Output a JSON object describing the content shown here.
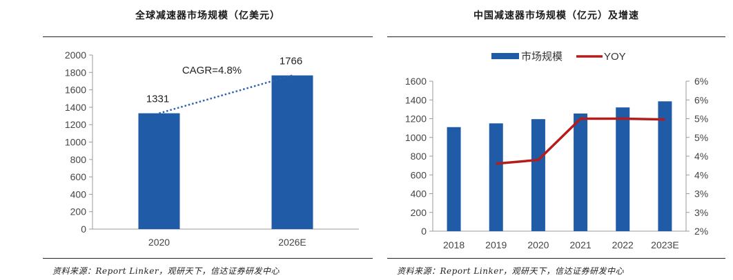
{
  "left": {
    "title": "全球减速器市场规模（亿美元）",
    "source": "资料来源：Report Linker，观研天下，信达证券研发中心",
    "chart_data": {
      "type": "bar",
      "title": "全球减速器市场规模（亿美元）",
      "categories": [
        "2020",
        "2026E"
      ],
      "values": [
        1331,
        1766
      ],
      "data_labels": [
        "1331",
        "1766"
      ],
      "ylim": [
        0,
        2000
      ],
      "yticks": [
        0,
        200,
        400,
        600,
        800,
        1000,
        1200,
        1400,
        1600,
        1800,
        2000
      ],
      "ytick_labels": [
        "0",
        "200",
        "400",
        "600",
        "800",
        "1000",
        "1200",
        "1400",
        "1600",
        "1800",
        "2000"
      ],
      "annotation": "CAGR=4.8%",
      "bar_color": "#1f5ba6",
      "trend_color": "#2f5fb0",
      "grid": false
    }
  },
  "right": {
    "title": "中国减速器市场规模（亿元）及增速",
    "source": "资料来源：Report Linker，观研天下，信达证券研发中心",
    "chart_data": {
      "type": "bar",
      "title": "中国减速器市场规模（亿元）及增速",
      "categories": [
        "2018",
        "2019",
        "2020",
        "2021",
        "2022",
        "2023E"
      ],
      "series": [
        {
          "name": "市场规模",
          "type": "bar",
          "axis": "left",
          "color": "#1f5ba6",
          "values": [
            1110,
            1150,
            1195,
            1255,
            1320,
            1385
          ]
        },
        {
          "name": "YOY",
          "type": "line",
          "axis": "right",
          "color": "#b51c1c",
          "values": [
            null,
            3.8,
            3.9,
            5.0,
            5.0,
            4.98
          ]
        }
      ],
      "ylim_left": [
        0,
        1600
      ],
      "yticks_left": [
        0,
        200,
        400,
        600,
        800,
        1000,
        1200,
        1400,
        1600
      ],
      "ytick_labels_left": [
        "0",
        "200",
        "400",
        "600",
        "800",
        "1000",
        "1200",
        "1400",
        "1600"
      ],
      "ylim_right": [
        2,
        6
      ],
      "yticks_right": [
        2,
        2.5,
        3,
        3.5,
        4,
        4.5,
        5,
        5.5,
        6
      ],
      "ytick_labels_right": [
        "2%",
        "3%",
        "3%",
        "4%",
        "4%",
        "5%",
        "5%",
        "6%",
        "6%"
      ],
      "legend": "top-center",
      "grid": false
    }
  }
}
